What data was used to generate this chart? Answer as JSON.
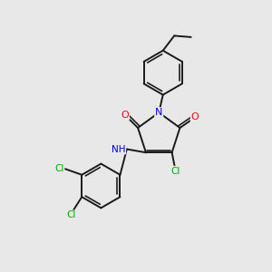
{
  "background_color": "#e8e8e8",
  "bond_color": "#1a1a1a",
  "atom_colors": {
    "N": "#0000ee",
    "O": "#ff0000",
    "Cl": "#00aa00",
    "H": "#888888",
    "C": "#1a1a1a"
  },
  "figsize": [
    3.0,
    3.0
  ],
  "dpi": 100
}
